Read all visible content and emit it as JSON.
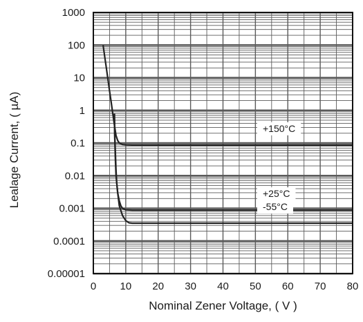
{
  "chart_data": {
    "type": "line",
    "title": "",
    "xlabel": "Nominal Zener Voltage, ( V )",
    "ylabel": "Lealage Current, ( µA)",
    "xlim": [
      0,
      80
    ],
    "ylim": [
      1e-05,
      1000
    ],
    "y_scale": "log",
    "x_ticks": [
      "0",
      "10",
      "20",
      "30",
      "40",
      "50",
      "60",
      "70",
      "80"
    ],
    "y_ticks": [
      "0.00001",
      "0.0001",
      "0.001",
      "0.01",
      "0.1",
      "1",
      "10",
      "100",
      "1000"
    ],
    "grid": true,
    "colors": {
      "line": "#222222",
      "grid": "#5a5a5a",
      "background": "#ffffff"
    },
    "series": [
      {
        "name": "+150°C",
        "x": [
          3,
          3.5,
          4,
          4.5,
          5,
          5.5,
          6,
          6.5,
          7,
          7.5,
          8,
          9,
          10,
          12,
          80
        ],
        "y": [
          100,
          45,
          20,
          9,
          4,
          1.8,
          0.8,
          0.35,
          0.17,
          0.12,
          0.1,
          0.09,
          0.088,
          0.087,
          0.087
        ]
      },
      {
        "name": "+25°C",
        "x": [
          6.5,
          6.6,
          6.8,
          7,
          7.2,
          7.5,
          8,
          8.5,
          9,
          10,
          12,
          80
        ],
        "y": [
          0.8,
          0.2,
          0.05,
          0.015,
          0.006,
          0.003,
          0.0017,
          0.0012,
          0.001,
          0.0009,
          0.00088,
          0.00088
        ]
      },
      {
        "name": "-55°C",
        "x": [
          6.5,
          6.6,
          6.8,
          7,
          7.5,
          8,
          9,
          10,
          11,
          12,
          80
        ],
        "y": [
          0.8,
          0.15,
          0.03,
          0.01,
          0.003,
          0.0012,
          0.0006,
          0.00042,
          0.00036,
          0.00035,
          0.00035
        ]
      }
    ]
  }
}
